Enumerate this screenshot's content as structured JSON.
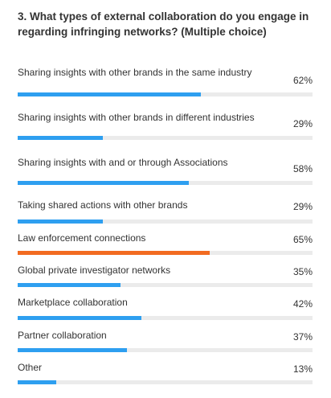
{
  "chart_data": {
    "type": "bar",
    "orientation": "horizontal",
    "title": "3. What types of external collaboration do you engage in regarding infringing networks? (Multiple choice)",
    "categories": [
      "Sharing insights with other brands in the same industry",
      "Sharing insights with other brands in different industries",
      "Sharing insights with and or through Associations",
      "Taking shared actions with other brands",
      "Law enforcement connections",
      "Global private investigator networks",
      "Marketplace collaboration",
      "Partner collaboration",
      "Other"
    ],
    "values": [
      62,
      29,
      58,
      29,
      65,
      35,
      42,
      37,
      13
    ],
    "value_labels": [
      "62%",
      "29%",
      "58%",
      "29%",
      "65%",
      "35%",
      "42%",
      "37%",
      "13%"
    ],
    "unit": "%",
    "xlim": [
      0,
      100
    ],
    "highlight_index": 4,
    "grid": false,
    "colors": {
      "bar": "#2e9ff0",
      "highlight": "#f26b21",
      "track": "#ebebeb",
      "text": "#333333"
    }
  }
}
